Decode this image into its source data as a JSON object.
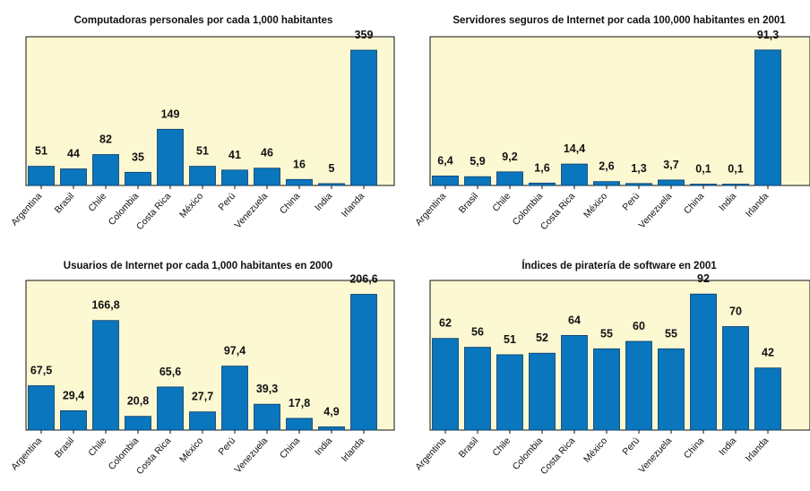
{
  "colors": {
    "plot_background": "#fcf8d2",
    "bar": "#0a76bd",
    "bar_edge": "#0a3a66",
    "frame": "#111111",
    "text": "#111111"
  },
  "chart_data": [
    {
      "type": "bar",
      "title": "Computadoras personales por cada 1,000 habitantes",
      "categories": [
        "Argentina",
        "Brasil",
        "Chile",
        "Colombia",
        "Costa Rica",
        "México",
        "Perú",
        "Venezuela",
        "China",
        "India",
        "Irlanda"
      ],
      "values": [
        51,
        44,
        82,
        35,
        149,
        51,
        41,
        46,
        16,
        5,
        359
      ],
      "labels": [
        "51",
        "44",
        "82",
        "35",
        "149",
        "51",
        "41",
        "46",
        "16",
        "5",
        "359"
      ],
      "ylim": [
        0,
        390
      ],
      "grid": false,
      "legend": "none"
    },
    {
      "type": "bar",
      "title": "Servidores seguros de Internet por cada 100,000 habitantes en 2001",
      "categories": [
        "Argentina",
        "Brasil",
        "Chile",
        "Colombia",
        "Costa Rica",
        "México",
        "Perú",
        "Venezuela",
        "China",
        "India",
        "Irlanda"
      ],
      "values": [
        6.4,
        5.9,
        9.2,
        1.6,
        14.4,
        2.6,
        1.3,
        3.7,
        0.1,
        0.1,
        91.3
      ],
      "labels": [
        "6,4",
        "5,9",
        "9,2",
        "1,6",
        "14,4",
        "2,6",
        "1,3",
        "3,7",
        "0,1",
        "0,1",
        "91,3"
      ],
      "ylim": [
        0,
        99
      ],
      "grid": false,
      "legend": "none"
    },
    {
      "type": "bar",
      "title": "Usuarios de Internet por cada 1,000 habitantes en 2000",
      "categories": [
        "Argentina",
        "Brasil",
        "Chile",
        "Colombia",
        "Costa Rica",
        "México",
        "Perú",
        "Venezuela",
        "China",
        "India",
        "Irlanda"
      ],
      "values": [
        67.5,
        29.4,
        166.8,
        20.8,
        65.6,
        27.7,
        97.4,
        39.3,
        17.8,
        4.9,
        206.6
      ],
      "labels": [
        "67,5",
        "29,4",
        "166,8",
        "20,8",
        "65,6",
        "27,7",
        "97,4",
        "39,3",
        "17,8",
        "4,9",
        "206,6"
      ],
      "ylim": [
        0,
        225
      ],
      "grid": false,
      "legend": "none"
    },
    {
      "type": "bar",
      "title": "Índices de piratería de software en 2001",
      "categories": [
        "Argentina",
        "Brasil",
        "Chile",
        "Colombia",
        "Costa Rica",
        "México",
        "Perú",
        "Venezuela",
        "China",
        "India",
        "Irlanda"
      ],
      "values": [
        62,
        56,
        51,
        52,
        64,
        55,
        60,
        55,
        92,
        70,
        42
      ],
      "labels": [
        "62",
        "56",
        "51",
        "52",
        "64",
        "55",
        "60",
        "55",
        "92",
        "70",
        "42"
      ],
      "ylim": [
        0,
        100
      ],
      "grid": false,
      "legend": "none"
    }
  ]
}
